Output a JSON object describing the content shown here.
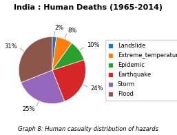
{
  "chart_data": {
    "type": "pie",
    "title": "India : Human Deaths (1965-2014)",
    "caption": "Graph 8: Human casualty distribution of hazards",
    "categories": [
      "Landslide",
      "Extreme_temperature",
      "Epidemic",
      "Earthquake",
      "Storm",
      "Flood"
    ],
    "values": [
      2,
      8,
      10,
      24,
      25,
      31
    ],
    "value_labels": [
      "2%",
      "8%",
      "10%",
      "24%",
      "25%",
      "31%"
    ],
    "data_labels": true,
    "legend": "center left"
  }
}
